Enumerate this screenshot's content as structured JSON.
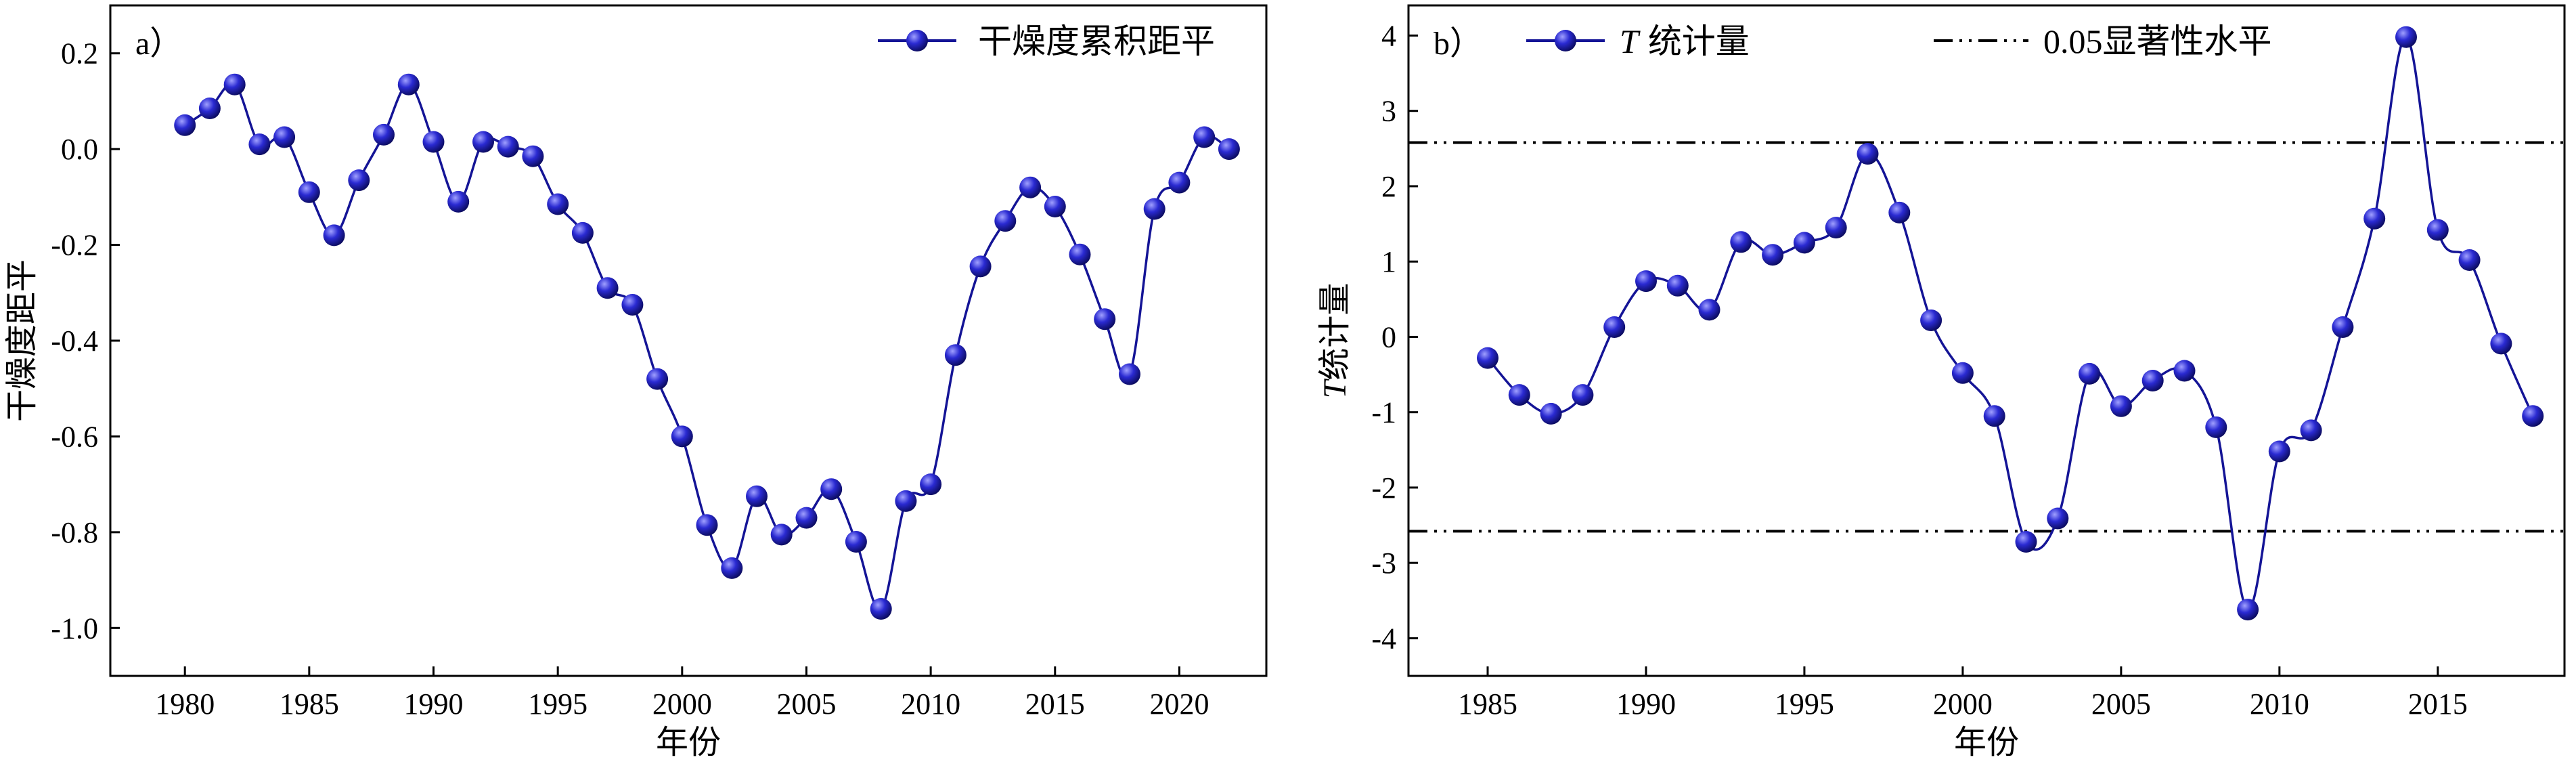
{
  "colors": {
    "series": "#141496",
    "marker_light": "#a0a0ff",
    "marker_mid": "#2a2ad2",
    "marker_dark": "#0a0a5a",
    "axis": "#000000"
  },
  "marker_icon": "sphere-marker",
  "chart_data": [
    {
      "panel": "a）",
      "type": "line",
      "xlabel": "年份",
      "ylabel": "干燥度距平",
      "xlim": [
        1977,
        2023.5
      ],
      "ylim": [
        -1.1,
        0.3
      ],
      "xticks": [
        1980,
        1985,
        1990,
        1995,
        2000,
        2005,
        2010,
        2015,
        2020
      ],
      "yticks": [
        0.2,
        0.0,
        -0.2,
        -0.4,
        -0.6,
        -0.8,
        -1.0
      ],
      "ytick_labels": [
        "0.2",
        "0.0",
        "-0.2",
        "-0.4",
        "-0.6",
        "-0.8",
        "-1.0"
      ],
      "legend": {
        "position": "top-right",
        "entries": [
          "干燥度累积距平"
        ]
      },
      "grid": false,
      "series": [
        {
          "name": "干燥度累积距平",
          "marker": "sphere",
          "x": [
            1980,
            1981,
            1982,
            1983,
            1984,
            1985,
            1986,
            1987,
            1988,
            1989,
            1990,
            1991,
            1992,
            1993,
            1994,
            1995,
            1996,
            1997,
            1998,
            1999,
            2000,
            2001,
            2002,
            2003,
            2004,
            2005,
            2006,
            2007,
            2008,
            2009,
            2010,
            2011,
            2012,
            2013,
            2014,
            2015,
            2016,
            2017,
            2018,
            2019,
            2020,
            2021,
            2022
          ],
          "y": [
            0.05,
            0.085,
            0.135,
            0.01,
            0.025,
            -0.09,
            -0.18,
            -0.065,
            0.03,
            0.135,
            0.015,
            -0.11,
            0.015,
            0.005,
            -0.015,
            -0.115,
            -0.175,
            -0.29,
            -0.325,
            -0.48,
            -0.6,
            -0.785,
            -0.875,
            -0.725,
            -0.805,
            -0.77,
            -0.71,
            -0.82,
            -0.96,
            -0.735,
            -0.7,
            -0.43,
            -0.245,
            -0.15,
            -0.08,
            -0.12,
            -0.22,
            -0.355,
            -0.47,
            -0.125,
            -0.07,
            0.025,
            0.0
          ]
        }
      ]
    },
    {
      "panel": "b）",
      "type": "line",
      "xlabel": "年份",
      "ylabel": "T 统计量",
      "ylabel_italic": "T",
      "ylabel_rest": "统计量",
      "xlim": [
        1982.5,
        2019
      ],
      "ylim": [
        -4.5,
        4.4
      ],
      "xticks": [
        1985,
        1990,
        1995,
        2000,
        2005,
        2010,
        2015
      ],
      "yticks": [
        4,
        3,
        2,
        1,
        0,
        -1,
        -2,
        -3,
        -4
      ],
      "ytick_labels": [
        "4",
        "3",
        "2",
        "1",
        "0",
        "-1",
        "-2",
        "-3",
        "-4"
      ],
      "legend": {
        "position": "top",
        "entries": [
          "T 统计量",
          "0.05显著性水平"
        ],
        "t_italic": "T",
        "t_rest": "统计量",
        "sig_label": "0.05显著性水平"
      },
      "grid": false,
      "significance_level": 2.58,
      "series": [
        {
          "name": "T 统计量",
          "marker": "sphere",
          "x": [
            1985,
            1986,
            1987,
            1988,
            1989,
            1990,
            1991,
            1992,
            1993,
            1994,
            1995,
            1996,
            1997,
            1998,
            1999,
            2000,
            2001,
            2002,
            2003,
            2004,
            2005,
            2006,
            2007,
            2008,
            2009,
            2010,
            2011,
            2012,
            2013,
            2014,
            2015,
            2016,
            2017,
            2018
          ],
          "y": [
            -0.28,
            -0.77,
            -1.02,
            -0.77,
            0.13,
            0.74,
            0.68,
            0.36,
            1.26,
            1.09,
            1.25,
            1.45,
            2.43,
            1.65,
            0.22,
            -0.48,
            -1.05,
            -2.72,
            -2.41,
            -0.49,
            -0.92,
            -0.58,
            -0.45,
            -1.2,
            -3.62,
            -1.52,
            -1.24,
            0.13,
            1.57,
            3.98,
            1.42,
            1.02,
            -0.09,
            -1.05
          ]
        }
      ]
    }
  ]
}
